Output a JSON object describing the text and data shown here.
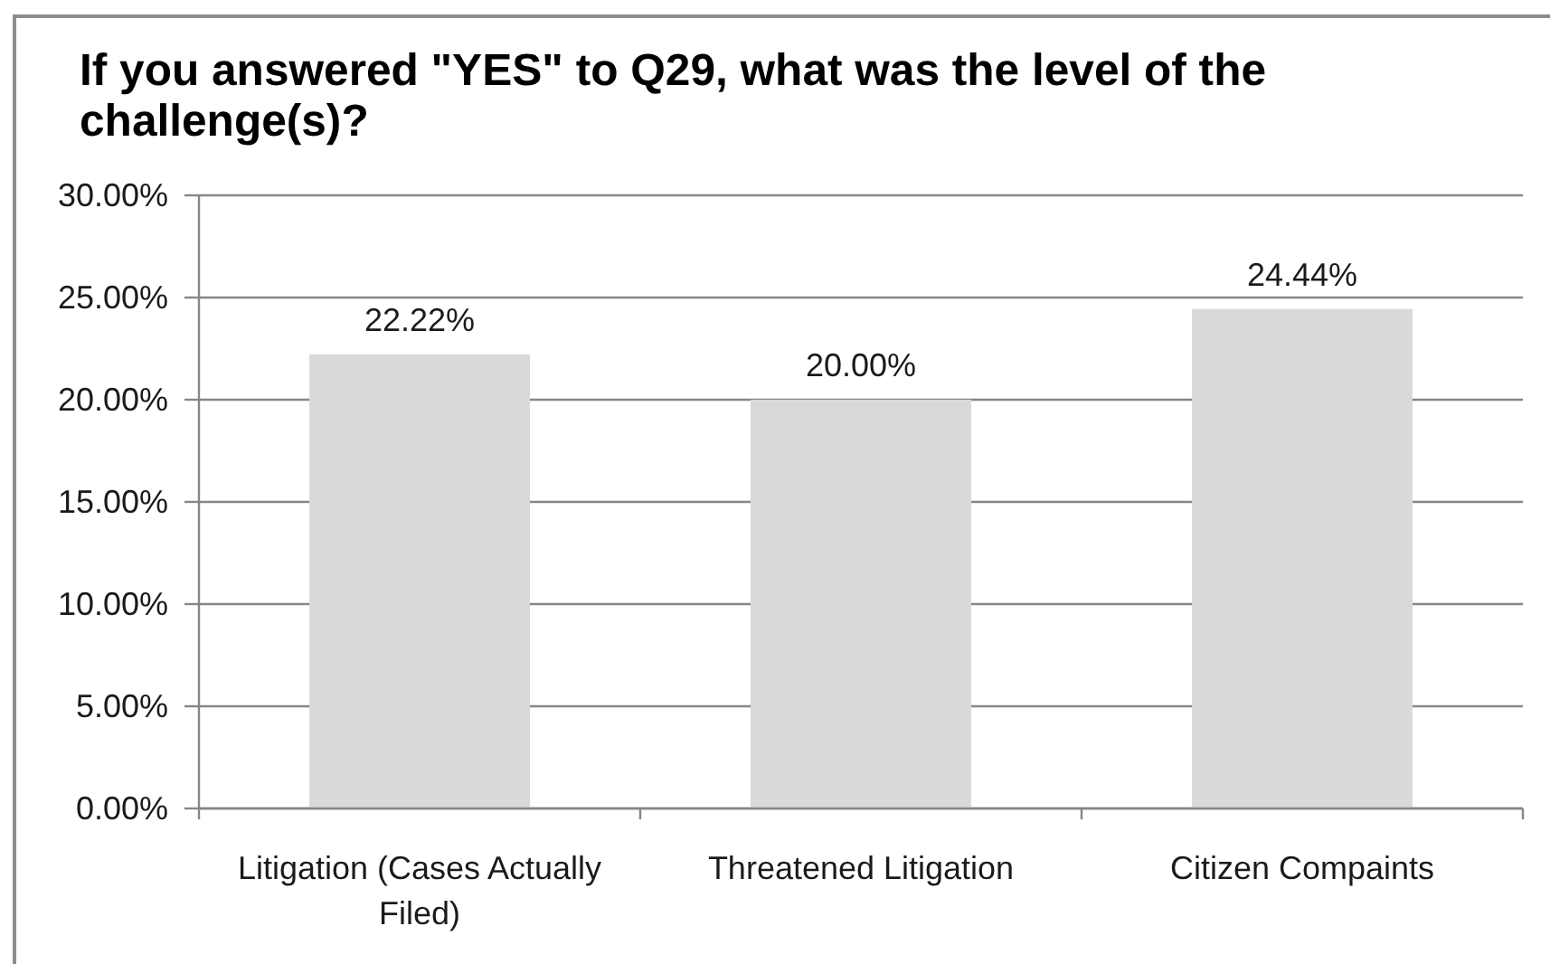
{
  "chart_data": {
    "type": "bar",
    "title": "If you answered \"YES\" to Q29, what was the level of the challenge(s)?",
    "categories": [
      "Litigation (Cases Actually Filed)",
      "Threatened Litigation",
      "Citizen Compaints"
    ],
    "values": [
      22.22,
      20,
      24.44
    ],
    "value_labels": [
      "22.22%",
      "20.00%",
      "24.44%"
    ],
    "color": "#d9d9d9",
    "ylim": [
      0,
      30
    ],
    "yticks": [
      {
        "value": 0,
        "label": "0.00%"
      },
      {
        "value": 5,
        "label": "5.00%"
      },
      {
        "value": 10,
        "label": "10.00%"
      },
      {
        "value": 15,
        "label": "15.00%"
      },
      {
        "value": 20,
        "label": "20.00%"
      },
      {
        "value": 25,
        "label": "25.00%"
      },
      {
        "value": 30,
        "label": "30.00%"
      }
    ],
    "grid": "y"
  }
}
